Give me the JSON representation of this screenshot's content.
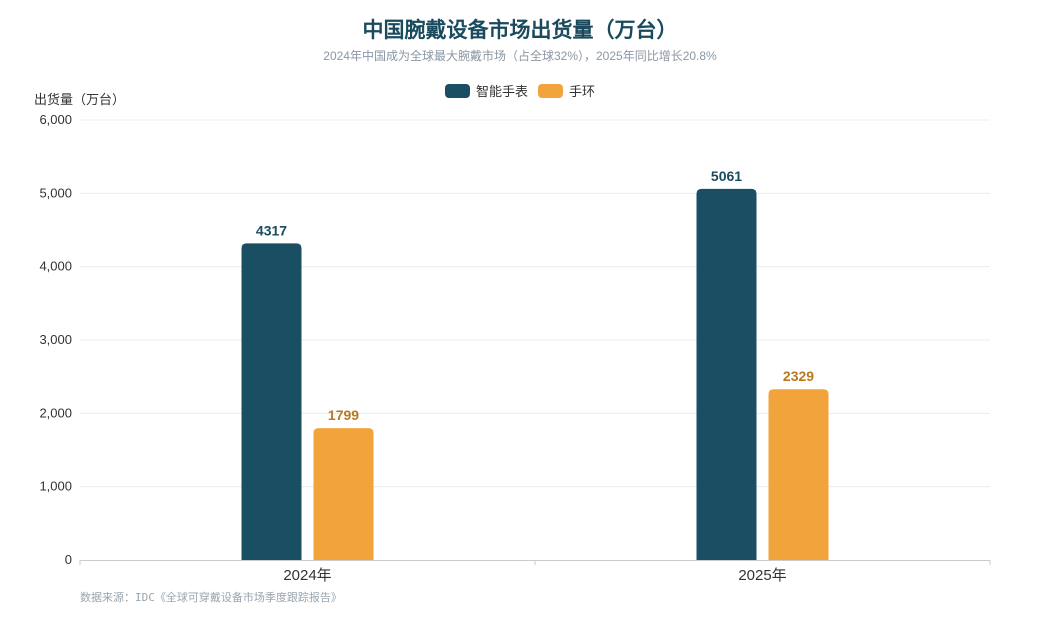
{
  "chart_data": {
    "type": "bar",
    "title": "中国腕戴设备市场出货量（万台）",
    "subtitle": "2024年中国成为全球最大腕戴市场（占全球32%），2025年同比增长20.8%",
    "ylabel": "出货量（万台）",
    "xlabel": "",
    "categories": [
      "2024年",
      "2025年"
    ],
    "series": [
      {
        "name": "智能手表",
        "values": [
          4317,
          5061
        ],
        "color": "#1a4f63",
        "label_color": "#1a4a5e"
      },
      {
        "name": "手环",
        "values": [
          1799,
          2329
        ],
        "color": "#f2a43c",
        "label_color": "#b8791f"
      }
    ],
    "ylim": [
      0,
      6000
    ],
    "yticks": [
      "0",
      "1,000",
      "2,000",
      "3,000",
      "4,000",
      "5,000",
      "6,000"
    ],
    "ytick_values": [
      0,
      1000,
      2000,
      3000,
      4000,
      5000,
      6000
    ],
    "grid": true,
    "legend_position": "top-center",
    "source": "数据来源：IDC《全球可穿戴设备市场季度跟踪报告》"
  }
}
